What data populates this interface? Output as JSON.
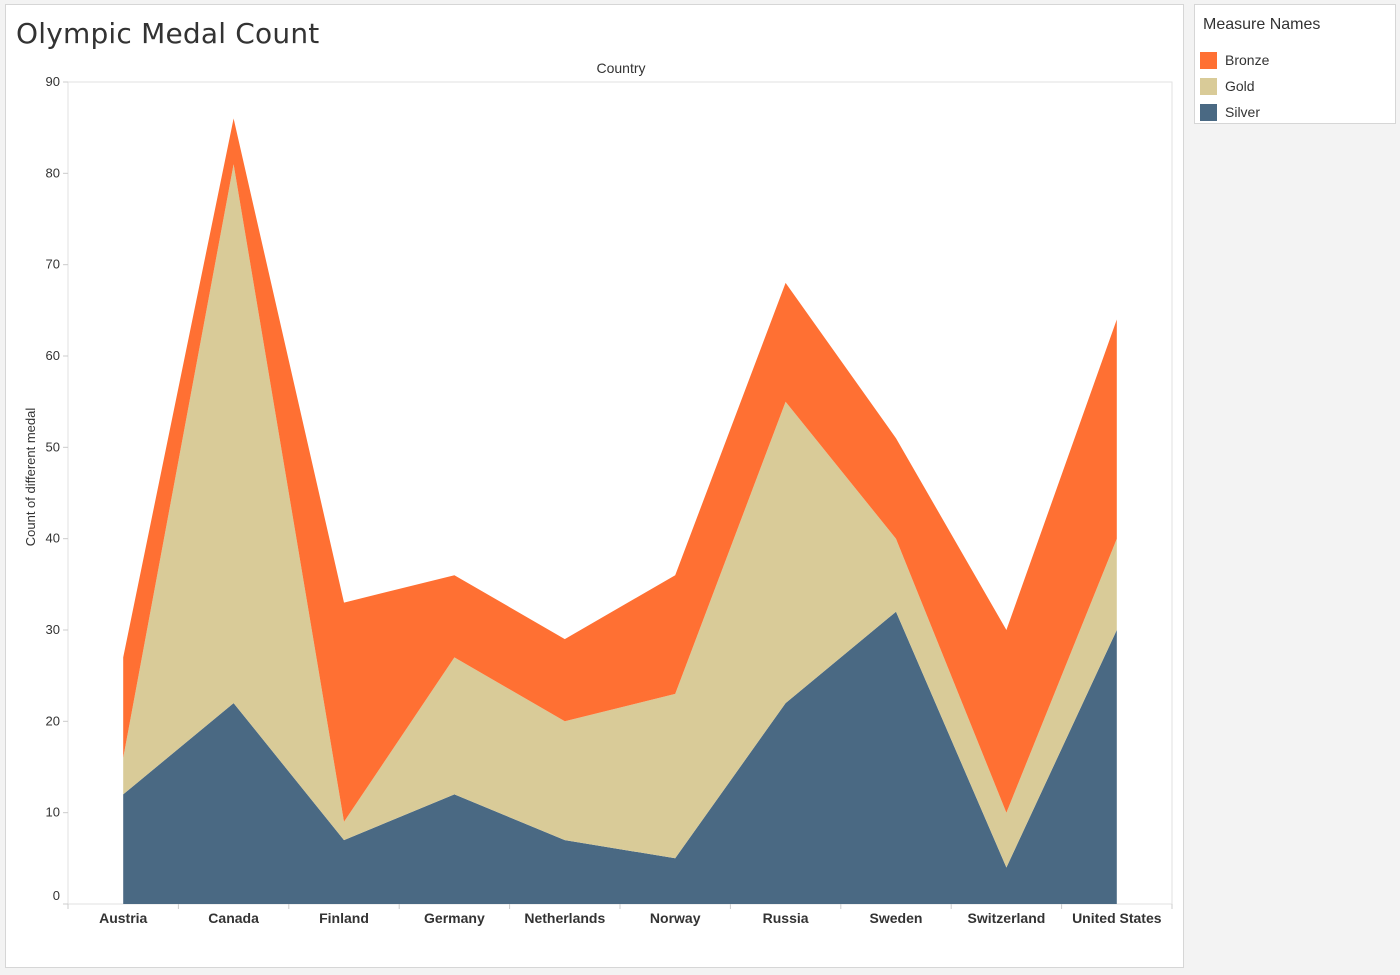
{
  "title": "Olympic Medal Count",
  "legend": {
    "title": "Measure Names",
    "items": [
      {
        "label": "Bronze",
        "color": "#ff7033"
      },
      {
        "label": "Gold",
        "color": "#d9cb98"
      },
      {
        "label": "Silver",
        "color": "#4a6983"
      }
    ]
  },
  "chart_data": {
    "type": "area",
    "stacked": true,
    "title": "Olympic Medal Count",
    "top_label": "Country",
    "xlabel": "",
    "ylabel": "Count of different medal",
    "ylim": [
      0,
      90
    ],
    "yticks": [
      0,
      10,
      20,
      30,
      40,
      50,
      60,
      70,
      80,
      90
    ],
    "grid": false,
    "legend_position": "right",
    "categories": [
      "Austria",
      "Canada",
      "Finland",
      "Germany",
      "Netherlands",
      "Norway",
      "Russia",
      "Sweden",
      "Switzerland",
      "United States"
    ],
    "series": [
      {
        "name": "Silver",
        "color": "#4a6983",
        "values": [
          12,
          22,
          7,
          12,
          7,
          5,
          22,
          32,
          4,
          30
        ]
      },
      {
        "name": "Gold",
        "color": "#d9cb98",
        "values": [
          4,
          59,
          2,
          15,
          13,
          18,
          33,
          8,
          6,
          10
        ]
      },
      {
        "name": "Bronze",
        "color": "#ff7033",
        "values": [
          11,
          5,
          24,
          9,
          9,
          13,
          13,
          11,
          20,
          24
        ]
      }
    ]
  }
}
